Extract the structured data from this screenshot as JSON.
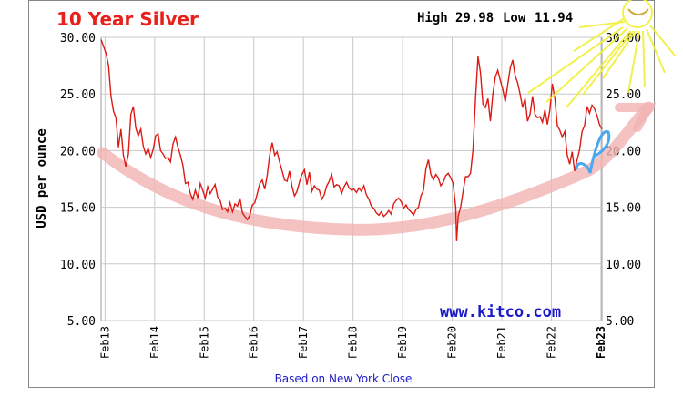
{
  "chart_data": {
    "type": "line",
    "title": "10 Year Silver",
    "stats": {
      "high_label": "High",
      "high": "29.98",
      "low_label": "Low",
      "low": "11.94"
    },
    "ylabel": "USD per ounce",
    "footer": "Based on New York Close",
    "watermark": "www.kitco.com",
    "ylim": [
      5,
      30
    ],
    "y_ticks": [
      "5.00",
      "10.00",
      "15.00",
      "20.00",
      "25.00",
      "30.00"
    ],
    "x_ticks": [
      "Feb13",
      "Feb14",
      "Feb15",
      "Feb16",
      "Feb17",
      "Feb18",
      "Feb19",
      "Feb20",
      "Feb21",
      "Feb22",
      "Feb23"
    ],
    "xlim": [
      2013.0,
      2023.1
    ],
    "grid": true,
    "colors": {
      "title": "#e8201c",
      "price_line": "#dd1a14",
      "trend_stroke": "#f2b3b3",
      "sun": "#f0f03a",
      "blue_mark": "#4aa8f0",
      "watermark": "#1a1ac8",
      "footer": "#1a1ac8"
    },
    "series": [
      {
        "values": [
          [
            2013.0,
            29.8
          ],
          [
            2013.05,
            29.2
          ],
          [
            2013.1,
            28.6
          ],
          [
            2013.15,
            27.5
          ],
          [
            2013.2,
            24.8
          ],
          [
            2013.25,
            23.5
          ],
          [
            2013.3,
            22.9
          ],
          [
            2013.35,
            20.3
          ],
          [
            2013.4,
            21.9
          ],
          [
            2013.45,
            19.6
          ],
          [
            2013.5,
            18.6
          ],
          [
            2013.55,
            19.7
          ],
          [
            2013.6,
            23.2
          ],
          [
            2013.65,
            23.9
          ],
          [
            2013.7,
            22.0
          ],
          [
            2013.75,
            21.3
          ],
          [
            2013.8,
            21.9
          ],
          [
            2013.85,
            20.4
          ],
          [
            2013.9,
            19.7
          ],
          [
            2013.95,
            20.2
          ],
          [
            2014.0,
            19.4
          ],
          [
            2014.05,
            20.1
          ],
          [
            2014.1,
            21.3
          ],
          [
            2014.15,
            21.5
          ],
          [
            2014.2,
            20.0
          ],
          [
            2014.25,
            19.7
          ],
          [
            2014.3,
            19.3
          ],
          [
            2014.35,
            19.4
          ],
          [
            2014.4,
            19.0
          ],
          [
            2014.45,
            20.6
          ],
          [
            2014.5,
            21.2
          ],
          [
            2014.55,
            20.3
          ],
          [
            2014.6,
            19.6
          ],
          [
            2014.65,
            18.7
          ],
          [
            2014.7,
            17.1
          ],
          [
            2014.75,
            17.2
          ],
          [
            2014.8,
            16.2
          ],
          [
            2014.85,
            15.7
          ],
          [
            2014.9,
            16.5
          ],
          [
            2014.95,
            15.8
          ],
          [
            2015.0,
            17.1
          ],
          [
            2015.05,
            16.5
          ],
          [
            2015.1,
            15.8
          ],
          [
            2015.15,
            16.8
          ],
          [
            2015.2,
            16.2
          ],
          [
            2015.25,
            16.6
          ],
          [
            2015.3,
            17.0
          ],
          [
            2015.35,
            15.9
          ],
          [
            2015.4,
            15.6
          ],
          [
            2015.45,
            14.8
          ],
          [
            2015.5,
            14.9
          ],
          [
            2015.55,
            14.6
          ],
          [
            2015.6,
            15.4
          ],
          [
            2015.65,
            14.6
          ],
          [
            2015.7,
            15.3
          ],
          [
            2015.75,
            15.1
          ],
          [
            2015.8,
            15.8
          ],
          [
            2015.85,
            14.5
          ],
          [
            2015.9,
            14.2
          ],
          [
            2015.95,
            13.9
          ],
          [
            2016.0,
            14.3
          ],
          [
            2016.05,
            15.2
          ],
          [
            2016.1,
            15.4
          ],
          [
            2016.15,
            16.2
          ],
          [
            2016.2,
            17.1
          ],
          [
            2016.25,
            17.4
          ],
          [
            2016.3,
            16.6
          ],
          [
            2016.35,
            17.8
          ],
          [
            2016.4,
            19.6
          ],
          [
            2016.45,
            20.7
          ],
          [
            2016.5,
            19.6
          ],
          [
            2016.55,
            19.9
          ],
          [
            2016.6,
            19.0
          ],
          [
            2016.65,
            18.2
          ],
          [
            2016.7,
            17.4
          ],
          [
            2016.75,
            17.3
          ],
          [
            2016.8,
            18.2
          ],
          [
            2016.85,
            16.8
          ],
          [
            2016.9,
            16.0
          ],
          [
            2016.95,
            16.4
          ],
          [
            2017.0,
            17.2
          ],
          [
            2017.05,
            17.9
          ],
          [
            2017.1,
            18.3
          ],
          [
            2017.15,
            17.0
          ],
          [
            2017.2,
            18.1
          ],
          [
            2017.25,
            16.4
          ],
          [
            2017.3,
            16.9
          ],
          [
            2017.35,
            16.6
          ],
          [
            2017.4,
            16.5
          ],
          [
            2017.45,
            15.7
          ],
          [
            2017.5,
            16.1
          ],
          [
            2017.55,
            16.9
          ],
          [
            2017.6,
            17.3
          ],
          [
            2017.65,
            17.9
          ],
          [
            2017.7,
            16.8
          ],
          [
            2017.75,
            17.0
          ],
          [
            2017.8,
            16.9
          ],
          [
            2017.85,
            16.2
          ],
          [
            2017.9,
            16.8
          ],
          [
            2017.95,
            17.2
          ],
          [
            2018.0,
            16.7
          ],
          [
            2018.05,
            16.5
          ],
          [
            2018.1,
            16.6
          ],
          [
            2018.15,
            16.3
          ],
          [
            2018.2,
            16.7
          ],
          [
            2018.25,
            16.4
          ],
          [
            2018.3,
            16.9
          ],
          [
            2018.35,
            16.1
          ],
          [
            2018.4,
            15.7
          ],
          [
            2018.45,
            15.1
          ],
          [
            2018.5,
            14.9
          ],
          [
            2018.55,
            14.5
          ],
          [
            2018.6,
            14.3
          ],
          [
            2018.65,
            14.6
          ],
          [
            2018.7,
            14.2
          ],
          [
            2018.75,
            14.4
          ],
          [
            2018.8,
            14.7
          ],
          [
            2018.85,
            14.4
          ],
          [
            2018.9,
            15.3
          ],
          [
            2018.95,
            15.6
          ],
          [
            2019.0,
            15.8
          ],
          [
            2019.05,
            15.5
          ],
          [
            2019.1,
            14.9
          ],
          [
            2019.15,
            15.2
          ],
          [
            2019.2,
            14.8
          ],
          [
            2019.25,
            14.6
          ],
          [
            2019.3,
            14.3
          ],
          [
            2019.35,
            14.8
          ],
          [
            2019.4,
            15.0
          ],
          [
            2019.45,
            16.0
          ],
          [
            2019.5,
            16.5
          ],
          [
            2019.55,
            18.4
          ],
          [
            2019.6,
            19.2
          ],
          [
            2019.65,
            17.9
          ],
          [
            2019.7,
            17.4
          ],
          [
            2019.75,
            17.9
          ],
          [
            2019.8,
            17.6
          ],
          [
            2019.85,
            16.9
          ],
          [
            2019.9,
            17.2
          ],
          [
            2019.95,
            17.8
          ],
          [
            2020.0,
            18.0
          ],
          [
            2020.05,
            17.6
          ],
          [
            2020.1,
            17.1
          ],
          [
            2020.15,
            15.0
          ],
          [
            2020.17,
            12.0
          ],
          [
            2020.2,
            14.2
          ],
          [
            2020.25,
            15.0
          ],
          [
            2020.3,
            16.4
          ],
          [
            2020.35,
            17.7
          ],
          [
            2020.4,
            17.7
          ],
          [
            2020.45,
            18.0
          ],
          [
            2020.5,
            20.1
          ],
          [
            2020.55,
            24.5
          ],
          [
            2020.6,
            28.3
          ],
          [
            2020.65,
            26.9
          ],
          [
            2020.7,
            24.1
          ],
          [
            2020.75,
            23.8
          ],
          [
            2020.8,
            24.6
          ],
          [
            2020.85,
            22.6
          ],
          [
            2020.9,
            25.0
          ],
          [
            2020.95,
            26.5
          ],
          [
            2021.0,
            27.1
          ],
          [
            2021.05,
            26.2
          ],
          [
            2021.1,
            25.4
          ],
          [
            2021.15,
            24.3
          ],
          [
            2021.2,
            25.8
          ],
          [
            2021.25,
            27.3
          ],
          [
            2021.3,
            28.0
          ],
          [
            2021.35,
            26.6
          ],
          [
            2021.4,
            26.0
          ],
          [
            2021.45,
            25.0
          ],
          [
            2021.5,
            23.8
          ],
          [
            2021.55,
            24.6
          ],
          [
            2021.6,
            22.6
          ],
          [
            2021.65,
            23.2
          ],
          [
            2021.7,
            24.8
          ],
          [
            2021.75,
            23.2
          ],
          [
            2021.8,
            22.9
          ],
          [
            2021.85,
            23.0
          ],
          [
            2021.9,
            22.5
          ],
          [
            2021.95,
            23.6
          ],
          [
            2022.0,
            22.3
          ],
          [
            2022.05,
            23.6
          ],
          [
            2022.1,
            25.9
          ],
          [
            2022.15,
            24.6
          ],
          [
            2022.2,
            22.2
          ],
          [
            2022.25,
            21.8
          ],
          [
            2022.3,
            21.2
          ],
          [
            2022.35,
            21.7
          ],
          [
            2022.4,
            19.6
          ],
          [
            2022.45,
            18.8
          ],
          [
            2022.5,
            19.9
          ],
          [
            2022.55,
            18.2
          ],
          [
            2022.6,
            19.2
          ],
          [
            2022.65,
            20.1
          ],
          [
            2022.7,
            21.7
          ],
          [
            2022.75,
            22.2
          ],
          [
            2022.8,
            23.9
          ],
          [
            2022.85,
            23.3
          ],
          [
            2022.9,
            24.0
          ],
          [
            2022.95,
            23.7
          ],
          [
            2023.0,
            23.1
          ],
          [
            2023.05,
            22.3
          ],
          [
            2023.1,
            21.9
          ]
        ]
      }
    ]
  }
}
